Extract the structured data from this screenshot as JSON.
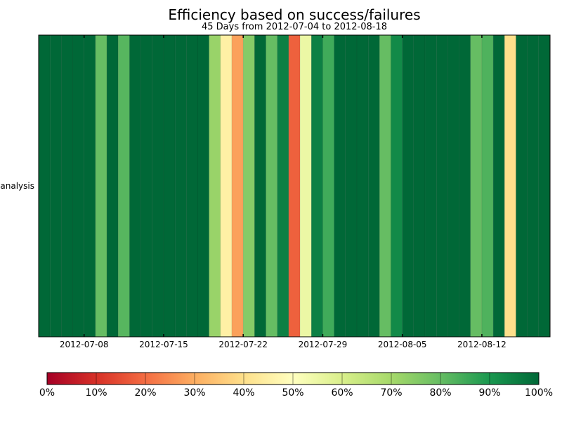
{
  "chart_data": {
    "type": "heatmap",
    "title": "Efficiency based on success/failures",
    "subtitle": "45 Days from 2012-07-04 to 2012-08-18",
    "ylabel_rows": [
      "analysis"
    ],
    "x_start_date": "2012-07-04",
    "x_end_date": "2012-08-18",
    "x_ticks": [
      "2012-07-08",
      "2012-07-15",
      "2012-07-22",
      "2012-07-29",
      "2012-08-05",
      "2012-08-12"
    ],
    "dates": [
      "2012-07-04",
      "2012-07-05",
      "2012-07-06",
      "2012-07-07",
      "2012-07-08",
      "2012-07-09",
      "2012-07-10",
      "2012-07-11",
      "2012-07-12",
      "2012-07-13",
      "2012-07-14",
      "2012-07-15",
      "2012-07-16",
      "2012-07-17",
      "2012-07-18",
      "2012-07-19",
      "2012-07-20",
      "2012-07-21",
      "2012-07-22",
      "2012-07-23",
      "2012-07-24",
      "2012-07-25",
      "2012-07-26",
      "2012-07-27",
      "2012-07-28",
      "2012-07-29",
      "2012-07-30",
      "2012-07-31",
      "2012-08-01",
      "2012-08-02",
      "2012-08-03",
      "2012-08-04",
      "2012-08-05",
      "2012-08-06",
      "2012-08-07",
      "2012-08-08",
      "2012-08-09",
      "2012-08-10",
      "2012-08-11",
      "2012-08-12",
      "2012-08-13",
      "2012-08-14",
      "2012-08-15",
      "2012-08-16",
      "2012-08-17"
    ],
    "values": [
      100,
      100,
      100,
      100,
      100,
      80,
      100,
      82,
      100,
      100,
      100,
      100,
      100,
      100,
      100,
      72,
      45,
      28,
      75,
      100,
      80,
      95,
      18,
      55,
      95,
      85,
      100,
      100,
      100,
      100,
      80,
      93,
      100,
      100,
      100,
      100,
      100,
      100,
      80,
      83,
      100,
      40,
      100,
      100,
      100
    ],
    "colorbar": {
      "range": [
        0,
        100
      ],
      "ticks": [
        "0%",
        "10%",
        "20%",
        "30%",
        "40%",
        "50%",
        "60%",
        "70%",
        "80%",
        "90%",
        "100%"
      ],
      "colormap": "RdYlGn",
      "colors": [
        "#a50026",
        "#d73027",
        "#f46d43",
        "#fdae61",
        "#fee08b",
        "#ffffbf",
        "#d9ef8b",
        "#a6d96a",
        "#66bd63",
        "#1a9850",
        "#006837"
      ]
    }
  }
}
